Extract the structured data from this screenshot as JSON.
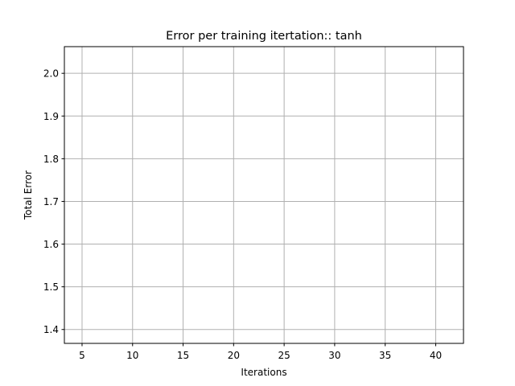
{
  "chart_data": {
    "type": "line",
    "title": "Error per training itertation:: tanh",
    "xlabel": "Iterations",
    "ylabel": "Total Error",
    "xlim": [
      3.25,
      42.75
    ],
    "ylim": [
      1.3675,
      2.0625
    ],
    "xticks": [
      5,
      10,
      15,
      20,
      25,
      30,
      35,
      40
    ],
    "yticks": [
      1.4,
      1.5,
      1.6,
      1.7,
      1.8,
      1.9,
      2.0
    ],
    "grid": true,
    "series": [],
    "colors": {
      "grid": "#b0b0b0",
      "axes": "#000000",
      "background": "#ffffff"
    }
  }
}
